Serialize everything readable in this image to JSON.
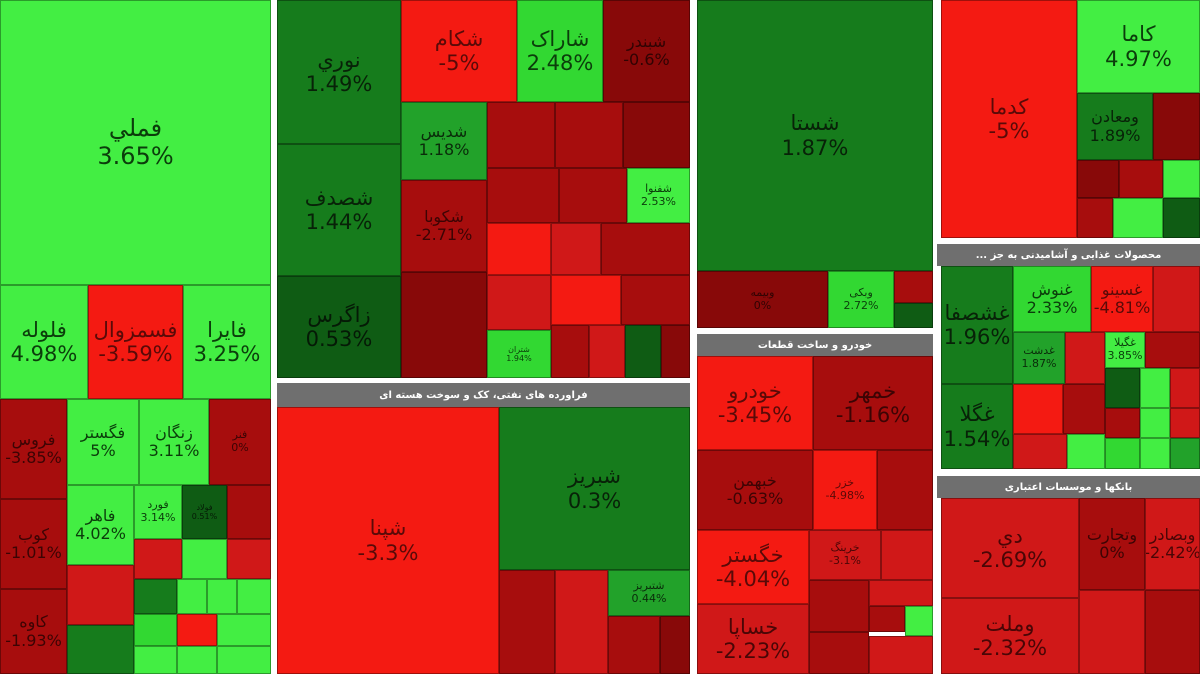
{
  "colors": {
    "lime": "#43ee43",
    "green_bright": "#32d832",
    "green_mid": "#22a22a",
    "green_dark": "#167c1c",
    "green_deep": "#0f5c14",
    "red_bright": "#f41a12",
    "red_mid": "#d01818",
    "red_dark": "#a70d0d",
    "red_deep": "#880909",
    "header_gray": "#6f6f6f"
  },
  "headers": {
    "refining": "فراورده های نفتی، کک و سوخت هسته ای",
    "auto": "خودرو و ساخت قطعات",
    "food": "محصولات غذایی و آشامیدنی به جز ...",
    "banks": "بانکها و موسسات اعتباری"
  },
  "tiles": {
    "fameli": {
      "symbol": "فملي",
      "change": "3.65%"
    },
    "foolah": {
      "symbol": "فلوله",
      "change": "4.98%"
    },
    "fasmizoul": {
      "symbol": "فسمزوال",
      "change": "-3.59%"
    },
    "faira": {
      "symbol": "فايرا",
      "change": "3.25%"
    },
    "foroum": {
      "symbol": "فروس",
      "change": "-3.85%"
    },
    "fgostar": {
      "symbol": "فگستر",
      "change": "5%"
    },
    "znogan": {
      "symbol": "زنگان",
      "change": "3.11%"
    },
    "fanar": {
      "symbol": "فنر",
      "change": "0%"
    },
    "foolad_small": {
      "symbol": "فولاد",
      "change": "0.51%"
    },
    "fahar": {
      "symbol": "فاهر",
      "change": "4.02%"
    },
    "ford": {
      "symbol": "فورد",
      "change": "3.14%"
    },
    "koob": {
      "symbol": "کوب",
      "change": "-1.01%"
    },
    "kava": {
      "symbol": "کاوه",
      "change": "-1.93%"
    },
    "noori": {
      "symbol": "نوري",
      "change": "1.49%"
    },
    "shekam": {
      "symbol": "شکام",
      "change": "-5%"
    },
    "sharak": {
      "symbol": "شاراک",
      "change": "2.48%"
    },
    "shbandar": {
      "symbol": "شبندر",
      "change": "-0.6%"
    },
    "shasadaf": {
      "symbol": "شصدف",
      "change": "1.44%"
    },
    "shadis": {
      "symbol": "شديس",
      "change": "1.18%"
    },
    "zagros": {
      "symbol": "زاگرس",
      "change": "0.53%"
    },
    "shakoba": {
      "symbol": "شکوبا",
      "change": "-2.71%"
    },
    "shfanoo": {
      "symbol": "شفنوا",
      "change": "2.53%"
    },
    "shetran": {
      "symbol": "شتران",
      "change": "1.94%"
    },
    "shasta": {
      "symbol": "شستا",
      "change": "1.87%"
    },
    "vbimeh": {
      "symbol": "وبیمه",
      "change": "0%"
    },
    "vmiki": {
      "symbol": "وبکی",
      "change": "2.72%"
    },
    "kadma": {
      "symbol": "کدما",
      "change": "-5%"
    },
    "kama": {
      "symbol": "کاما",
      "change": "4.97%"
    },
    "vamaaden": {
      "symbol": "ومعادن",
      "change": "1.89%"
    },
    "shpna": {
      "symbol": "شپنا",
      "change": "-3.3%"
    },
    "shbrif": {
      "symbol": "شبریز",
      "change": "0.3%"
    },
    "shtabriz": {
      "symbol": "شتبریز",
      "change": "0.44%"
    },
    "khodro": {
      "symbol": "خودرو",
      "change": "-3.45%"
    },
    "khmehr": {
      "symbol": "خمهر",
      "change": "-1.16%"
    },
    "khbahman": {
      "symbol": "خبهمن",
      "change": "-0.63%"
    },
    "khzar": {
      "symbol": "خزر",
      "change": "-4.98%"
    },
    "khgostar": {
      "symbol": "خگستر",
      "change": "-4.04%"
    },
    "khsapa": {
      "symbol": "خساپا",
      "change": "-2.23%"
    },
    "khrink": {
      "symbol": "خرینگ",
      "change": "-3.1%"
    },
    "ghshasafa": {
      "symbol": "غشصفا",
      "change": "1.96%"
    },
    "ghnoosh": {
      "symbol": "غنوش",
      "change": "2.33%"
    },
    "ghsino": {
      "symbol": "غسينو",
      "change": "-4.81%"
    },
    "ghgola": {
      "symbol": "غگلا",
      "change": "1.54%"
    },
    "ghamhn": {
      "symbol": "غدشت",
      "change": "1.87%"
    },
    "ghgol": {
      "symbol": "غگیلا",
      "change": "3.85%"
    },
    "dey": {
      "symbol": "دي",
      "change": "-2.69%"
    },
    "vmellat": {
      "symbol": "وملت",
      "change": "-2.32%"
    },
    "vtejarat": {
      "symbol": "وتجارت",
      "change": "0%"
    },
    "vbsader": {
      "symbol": "وبصادر",
      "change": "-2.42%"
    }
  }
}
